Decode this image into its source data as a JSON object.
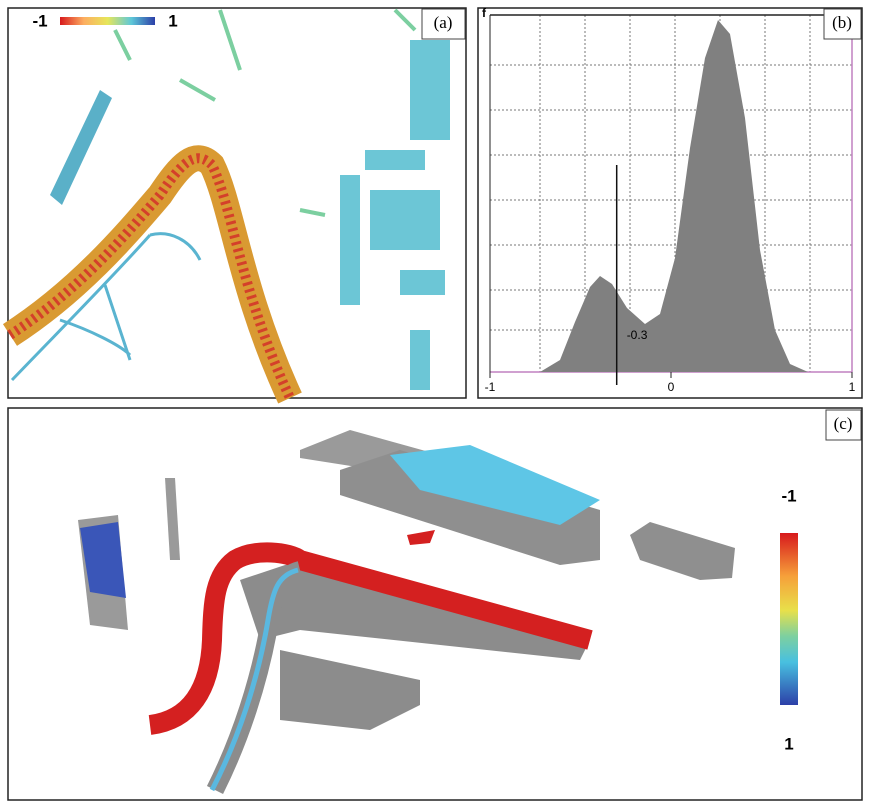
{
  "panels": {
    "a": {
      "label": "(a)",
      "colorbar": {
        "range": [
          -1,
          1
        ]
      }
    },
    "b": {
      "label": "(b)",
      "y_label": "f",
      "xlim": [
        -1,
        1
      ],
      "xticks": [
        -1,
        0,
        1
      ],
      "threshold": -0.3
    },
    "c": {
      "label": "(c)",
      "colorbar": {
        "range": [
          -1,
          1
        ]
      }
    }
  }
}
